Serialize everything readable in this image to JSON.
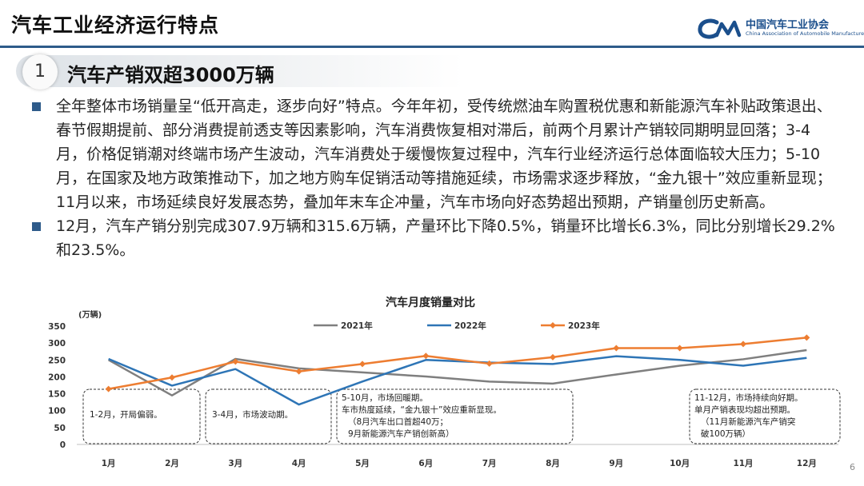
{
  "header": {
    "title": "汽车工业经济运行特点",
    "logo_cn": "中国汽车工业协会",
    "logo_en": "China Association of Automobile Manufacturers",
    "accent_color": "#2e5b8a"
  },
  "section": {
    "number": "1",
    "title": "汽车产销双超3000万辆"
  },
  "bullets": [
    "全年整体市场销量呈“低开高走，逐步向好”特点。今年年初，受传统燃油车购置税优惠和新能源汽车补贴政策退出、春节假期提前、部分消费提前透支等因素影响，汽车消费恢复相对滞后，前两个月累计产销较同期明显回落；3-4月，价格促销潮对终端市场产生波动，汽车消费处于缓慢恢复过程中，汽车行业经济运行总体面临较大压力；5-10月，在国家及地方政策推动下，加之地方购车促销活动等措施延续，市场需求逐步释放，“金九银十”效应重新显现；11月以来，市场延续良好发展态势，叠加年末车企冲量，汽车市场向好态势超出预期，产销量创历史新高。",
    "12月，汽车产销分别完成307.9万辆和315.6万辆，产量环比下降0.5%，销量环比增长6.3%，同比分别增长29.2%和23.5%。"
  ],
  "page_number": "6",
  "chart_data": {
    "type": "line",
    "title": "汽车月度销量对比",
    "ylabel": "(万辆)",
    "xlabel": "",
    "ylim": [
      0,
      350
    ],
    "yticks": [
      0,
      50,
      100,
      150,
      200,
      250,
      300,
      350
    ],
    "grid": false,
    "legend_position": "top-center",
    "categories": [
      "1月",
      "2月",
      "3月",
      "4月",
      "5月",
      "6月",
      "7月",
      "8月",
      "9月",
      "10月",
      "11月",
      "12月"
    ],
    "series": [
      {
        "name": "2021年",
        "color": "#7f7f7f",
        "marker": "none",
        "values": [
          250,
          145,
          253,
          225,
          213,
          201,
          186,
          180,
          207,
          233,
          252,
          279
        ]
      },
      {
        "name": "2022年",
        "color": "#2e75b6",
        "marker": "none",
        "values": [
          253,
          174,
          223,
          118,
          186,
          250,
          242,
          238,
          261,
          250,
          233,
          256
        ]
      },
      {
        "name": "2023年",
        "color": "#ed7d31",
        "marker": "diamond",
        "values": [
          164,
          198,
          245,
          216,
          238,
          262,
          239,
          258,
          285,
          285,
          297,
          316
        ]
      }
    ],
    "annotations": [
      {
        "lines": [
          "1-2月，开局偏弱。"
        ]
      },
      {
        "lines": [
          "3-4月，市场波动期。"
        ]
      },
      {
        "lines": [
          "5-10月，市场回暖期。",
          "车市热度延续，“金九银十”效应重新显现。",
          "（8月汽车出口首超40万；",
          "9月新能源汽车产销创新高）"
        ]
      },
      {
        "lines": [
          "11-12月，市场持续向好期。",
          "单月产销表现均超出预期。",
          "（11月新能源汽车产销突",
          "破100万辆）"
        ]
      }
    ]
  }
}
